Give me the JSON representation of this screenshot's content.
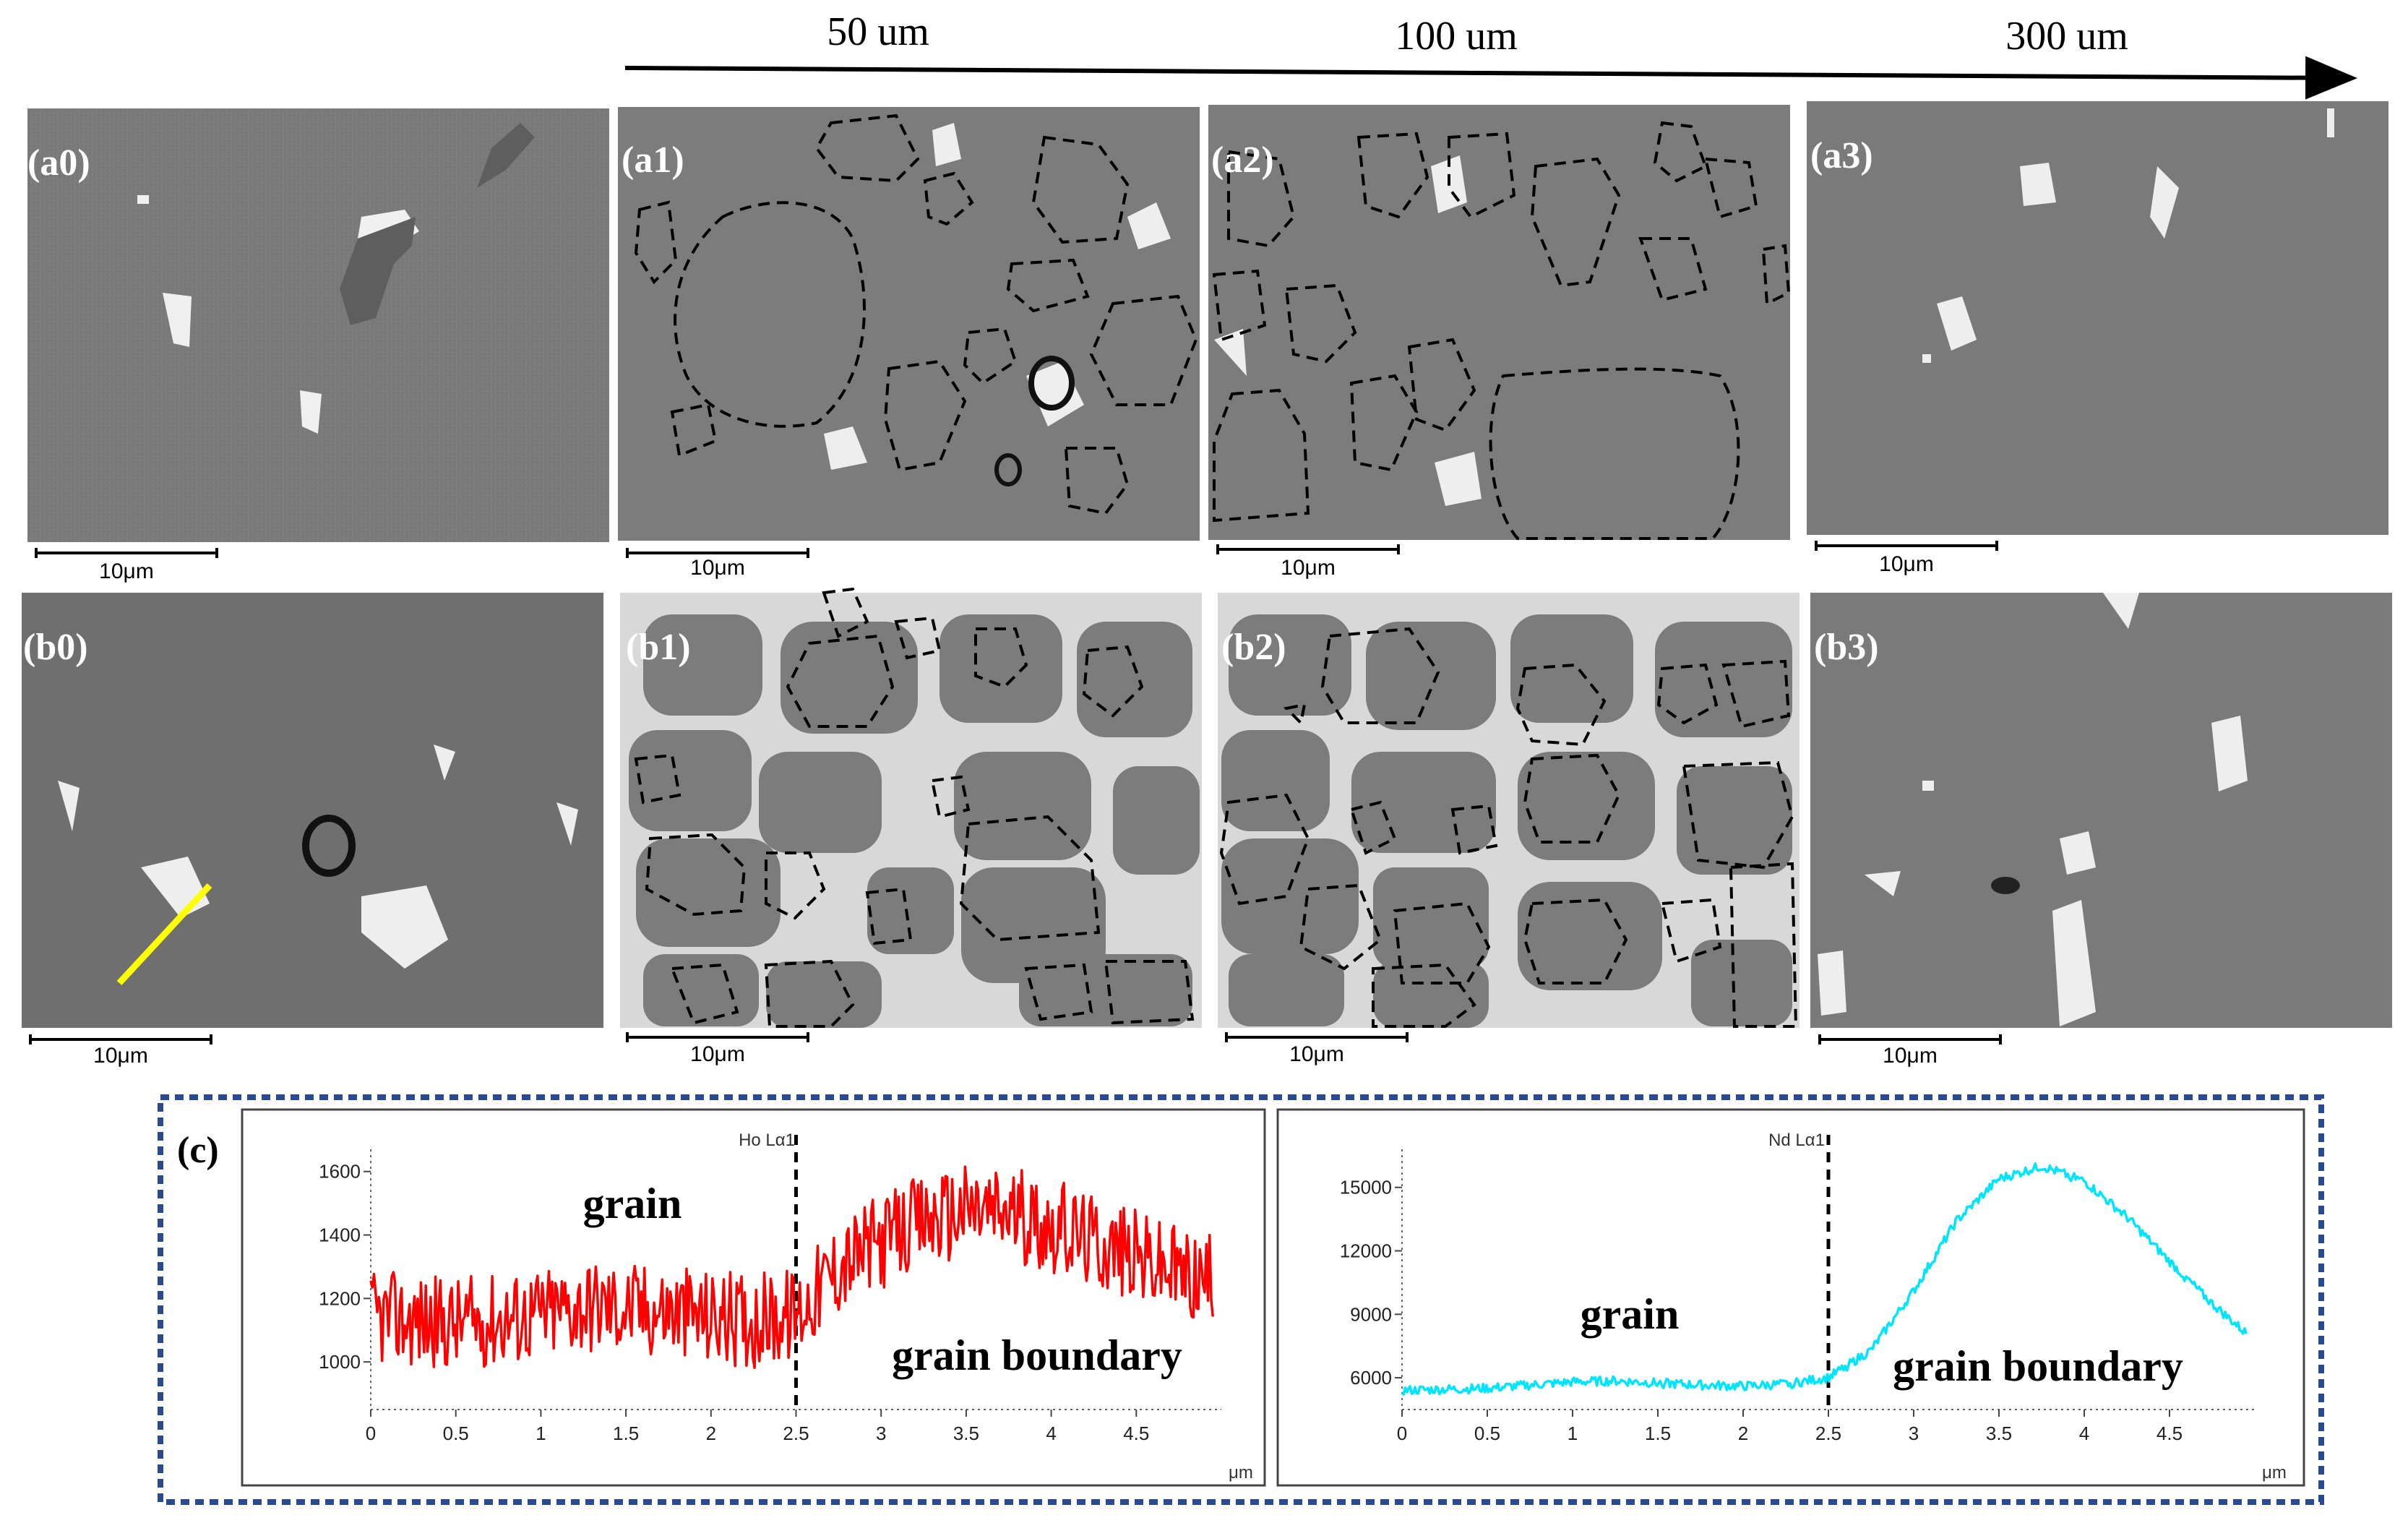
{
  "figure": {
    "header": {
      "distances": [
        "50 um",
        "100 um",
        "300 um"
      ]
    },
    "panels": [
      {
        "label": "(a0)",
        "scale": "10μm"
      },
      {
        "label": "(a1)",
        "scale": "10μm"
      },
      {
        "label": "(a2)",
        "scale": "10μm"
      },
      {
        "label": "(a3)",
        "scale": "10μm"
      },
      {
        "label": "(b0)",
        "scale": "10μm"
      },
      {
        "label": "(b1)",
        "scale": "10μm"
      },
      {
        "label": "(b2)",
        "scale": "10μm"
      },
      {
        "label": "(b3)",
        "scale": "10μm"
      }
    ],
    "linescan": {
      "label": "(c)",
      "colors": {
        "ho": "#ff0000",
        "nd": "#00e5ff",
        "border": "#2a4a8f"
      }
    }
  },
  "chart_data": [
    {
      "type": "line",
      "title": "Ho Lα1",
      "xlabel": "μm",
      "ylabel": "",
      "xlim": [
        0,
        5
      ],
      "ylim": [
        850,
        1670
      ],
      "x_ticks": [
        "0",
        "0.5",
        "1",
        "1.5",
        "2",
        "2.5",
        "3",
        "3.5",
        "4",
        "4.5"
      ],
      "y_ticks": [
        "1000",
        "1200",
        "1400",
        "1600"
      ],
      "series": [
        {
          "name": "Ho Lα1",
          "x": [
            0,
            0.25,
            0.5,
            0.75,
            1.0,
            1.25,
            1.5,
            1.75,
            2.0,
            2.25,
            2.5,
            2.75,
            3.0,
            3.25,
            3.5,
            3.75,
            4.0,
            4.25,
            4.5,
            4.75,
            4.95
          ],
          "y": [
            1140,
            1130,
            1120,
            1135,
            1150,
            1180,
            1170,
            1160,
            1140,
            1130,
            1150,
            1300,
            1380,
            1440,
            1480,
            1470,
            1430,
            1380,
            1330,
            1280,
            1250
          ]
        }
      ],
      "annotations": [
        {
          "text": "grain"
        },
        {
          "text": "grain boundary"
        }
      ],
      "divider_x": 2.5
    },
    {
      "type": "line",
      "title": "Nd Lα1",
      "xlabel": "μm",
      "ylabel": "",
      "xlim": [
        0,
        5
      ],
      "ylim": [
        4500,
        16800
      ],
      "x_ticks": [
        "0",
        "0.5",
        "1",
        "1.5",
        "2",
        "2.5",
        "3",
        "3.5",
        "4",
        "4.5"
      ],
      "y_ticks": [
        "6000",
        "9000",
        "12000",
        "15000"
      ],
      "series": [
        {
          "name": "Nd Lα1",
          "x": [
            0,
            0.25,
            0.5,
            0.75,
            1.0,
            1.25,
            1.5,
            1.75,
            2.0,
            2.25,
            2.5,
            2.75,
            3.0,
            3.25,
            3.5,
            3.75,
            4.0,
            4.25,
            4.5,
            4.75,
            4.95
          ],
          "y": [
            5400,
            5450,
            5500,
            5650,
            5800,
            5850,
            5750,
            5650,
            5600,
            5700,
            6000,
            7300,
            10100,
            13400,
            15400,
            16000,
            15300,
            13600,
            11500,
            9500,
            8100
          ]
        }
      ],
      "annotations": [
        {
          "text": "grain"
        },
        {
          "text": "grain boundary"
        }
      ],
      "divider_x": 2.5
    }
  ]
}
